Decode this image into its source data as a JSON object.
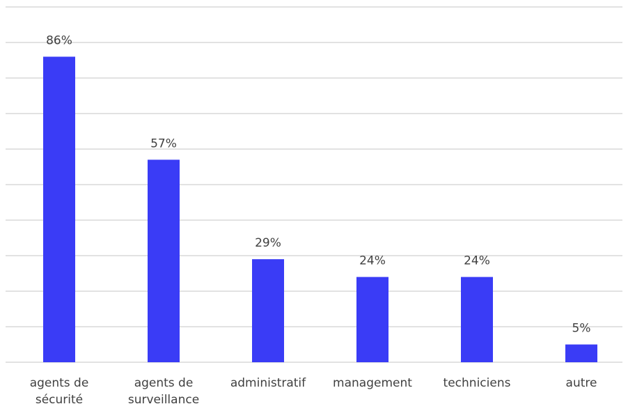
{
  "chart_data": {
    "type": "bar",
    "categories": [
      "agents de sécurité",
      "agents de surveillance",
      "administratif",
      "management",
      "techniciens",
      "autre"
    ],
    "values": [
      86,
      57,
      29,
      24,
      24,
      5
    ],
    "value_labels": [
      "86%",
      "57%",
      "29%",
      "24%",
      "24%",
      "5%"
    ],
    "color": "#3a3cf6",
    "ylim": [
      0,
      100
    ],
    "yticks": [
      0,
      10,
      20,
      30,
      40,
      50,
      60,
      70,
      80,
      90,
      100
    ],
    "grid": true
  }
}
